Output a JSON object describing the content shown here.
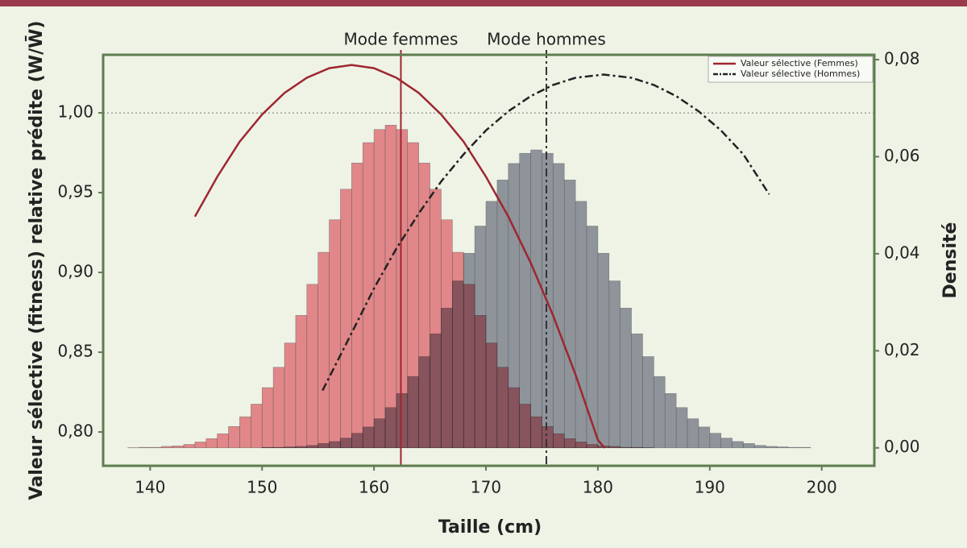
{
  "chart_data": {
    "type": "histogram",
    "xlabel": "Taille (cm)",
    "ylabel": "Valeur sélective (fitness) relative prédite (W/W̄)",
    "y2label": "Densité",
    "xlim": [
      135.8,
      204.7
    ],
    "ylim": [
      0.7788,
      1.0364
    ],
    "y2lim": [
      -0.0037,
      0.081
    ],
    "xticks": [
      140,
      150,
      160,
      170,
      180,
      190,
      200
    ],
    "yticks": [
      {
        "value": 0.8,
        "label": "0,80"
      },
      {
        "value": 0.85,
        "label": "0,85"
      },
      {
        "value": 0.9,
        "label": "0,90"
      },
      {
        "value": 0.95,
        "label": "0,95"
      },
      {
        "value": 1.0,
        "label": "1,00"
      }
    ],
    "y2ticks": [
      {
        "value": 0,
        "label": "0,00"
      },
      {
        "value": 0.02,
        "label": "0,02"
      },
      {
        "value": 0.04,
        "label": "0,04"
      },
      {
        "value": 0.06,
        "label": "0,06"
      },
      {
        "value": 0.08,
        "label": "0,08"
      }
    ],
    "hline": 1.0,
    "legend": "top-right",
    "bins": [
      138,
      139,
      140,
      141,
      142,
      143,
      144,
      145,
      146,
      147,
      148,
      149,
      150,
      151,
      152,
      153,
      154,
      155,
      156,
      157,
      158,
      159,
      160,
      161,
      162,
      163,
      164,
      165,
      166,
      167,
      168,
      169,
      170,
      171,
      172,
      173,
      174,
      175,
      176,
      177,
      178,
      179,
      180,
      181,
      182,
      183,
      184,
      185,
      186,
      187,
      188,
      189,
      190,
      191,
      192,
      193,
      194,
      195,
      196,
      197,
      198,
      199,
      200,
      201,
      202
    ],
    "series": [
      {
        "color": "#7d828c",
        "axis": "y2",
        "values": [
          0,
          0,
          0,
          0,
          0,
          0,
          0,
          0,
          0,
          0,
          0,
          0,
          0.0001,
          0.0001,
          0.0002,
          0.0003,
          0.0005,
          0.0009,
          0.0013,
          0.002,
          0.003,
          0.0043,
          0.006,
          0.0083,
          0.0112,
          0.0147,
          0.0188,
          0.0235,
          0.0288,
          0.0344,
          0.0401,
          0.0457,
          0.0508,
          0.0552,
          0.0586,
          0.0607,
          0.0614,
          0.0607,
          0.0586,
          0.0552,
          0.0508,
          0.0457,
          0.0401,
          0.0344,
          0.0288,
          0.0235,
          0.0188,
          0.0147,
          0.0112,
          0.0083,
          0.006,
          0.0043,
          0.003,
          0.002,
          0.0013,
          0.0009,
          0.0005,
          0.0003,
          0.0002,
          0.0001,
          0.0001,
          0,
          0,
          0
        ]
      },
      {
        "color": "#f07a86",
        "axis": "y2",
        "values": [
          4e-05,
          0.0001,
          0.0001,
          0.0003,
          0.0004,
          0.0007,
          0.0012,
          0.0019,
          0.0029,
          0.0044,
          0.0064,
          0.009,
          0.0124,
          0.0166,
          0.0216,
          0.0273,
          0.0337,
          0.0403,
          0.047,
          0.0533,
          0.0587,
          0.0629,
          0.0656,
          0.0665,
          0.0656,
          0.0629,
          0.0587,
          0.0533,
          0.047,
          0.0403,
          0.0337,
          0.0273,
          0.0216,
          0.0166,
          0.0124,
          0.009,
          0.0064,
          0.0044,
          0.0029,
          0.0019,
          0.0012,
          0.0007,
          0.0004,
          0.0003,
          0.0001,
          0.0001,
          4e-05,
          0,
          0,
          0,
          0,
          0,
          0,
          0,
          0,
          0,
          0,
          0,
          0,
          0,
          0,
          0,
          0,
          0
        ]
      }
    ],
    "curves": [
      {
        "name": "Valeur sélective (Femmes)",
        "color": "#9e2630",
        "dash": "solid",
        "x": [
          144,
          146,
          148,
          150,
          152,
          154,
          156,
          158,
          160,
          162,
          164,
          166,
          168,
          170,
          172,
          174,
          176,
          178,
          180,
          180.6
        ],
        "values": [
          0.935,
          0.96,
          0.982,
          0.999,
          1.0125,
          1.022,
          1.028,
          1.03,
          1.028,
          1.022,
          1.0125,
          0.999,
          0.982,
          0.96,
          0.935,
          0.906,
          0.873,
          0.836,
          0.795,
          0.79
        ]
      },
      {
        "name": "Valeur sélective (Hommes)",
        "color": "#222222",
        "dash": "dashdot",
        "x": [
          155.4,
          158,
          160,
          162,
          164,
          166,
          168,
          170,
          172,
          174,
          176,
          178,
          180.5,
          183,
          185,
          187,
          189,
          191,
          193,
          195.3
        ],
        "values": [
          0.826,
          0.862,
          0.89,
          0.915,
          0.937,
          0.957,
          0.974,
          0.989,
          1.001,
          1.0105,
          1.0175,
          1.022,
          1.024,
          1.022,
          1.0175,
          1.0105,
          1.001,
          0.989,
          0.974,
          0.949
        ]
      }
    ],
    "modes": [
      {
        "label": "Mode femmes",
        "x": 162.4,
        "color": "#9e2630",
        "dash": "solid"
      },
      {
        "label": "Mode hommes",
        "x": 175.4,
        "color": "#333333",
        "dash": "dashdot"
      }
    ]
  }
}
